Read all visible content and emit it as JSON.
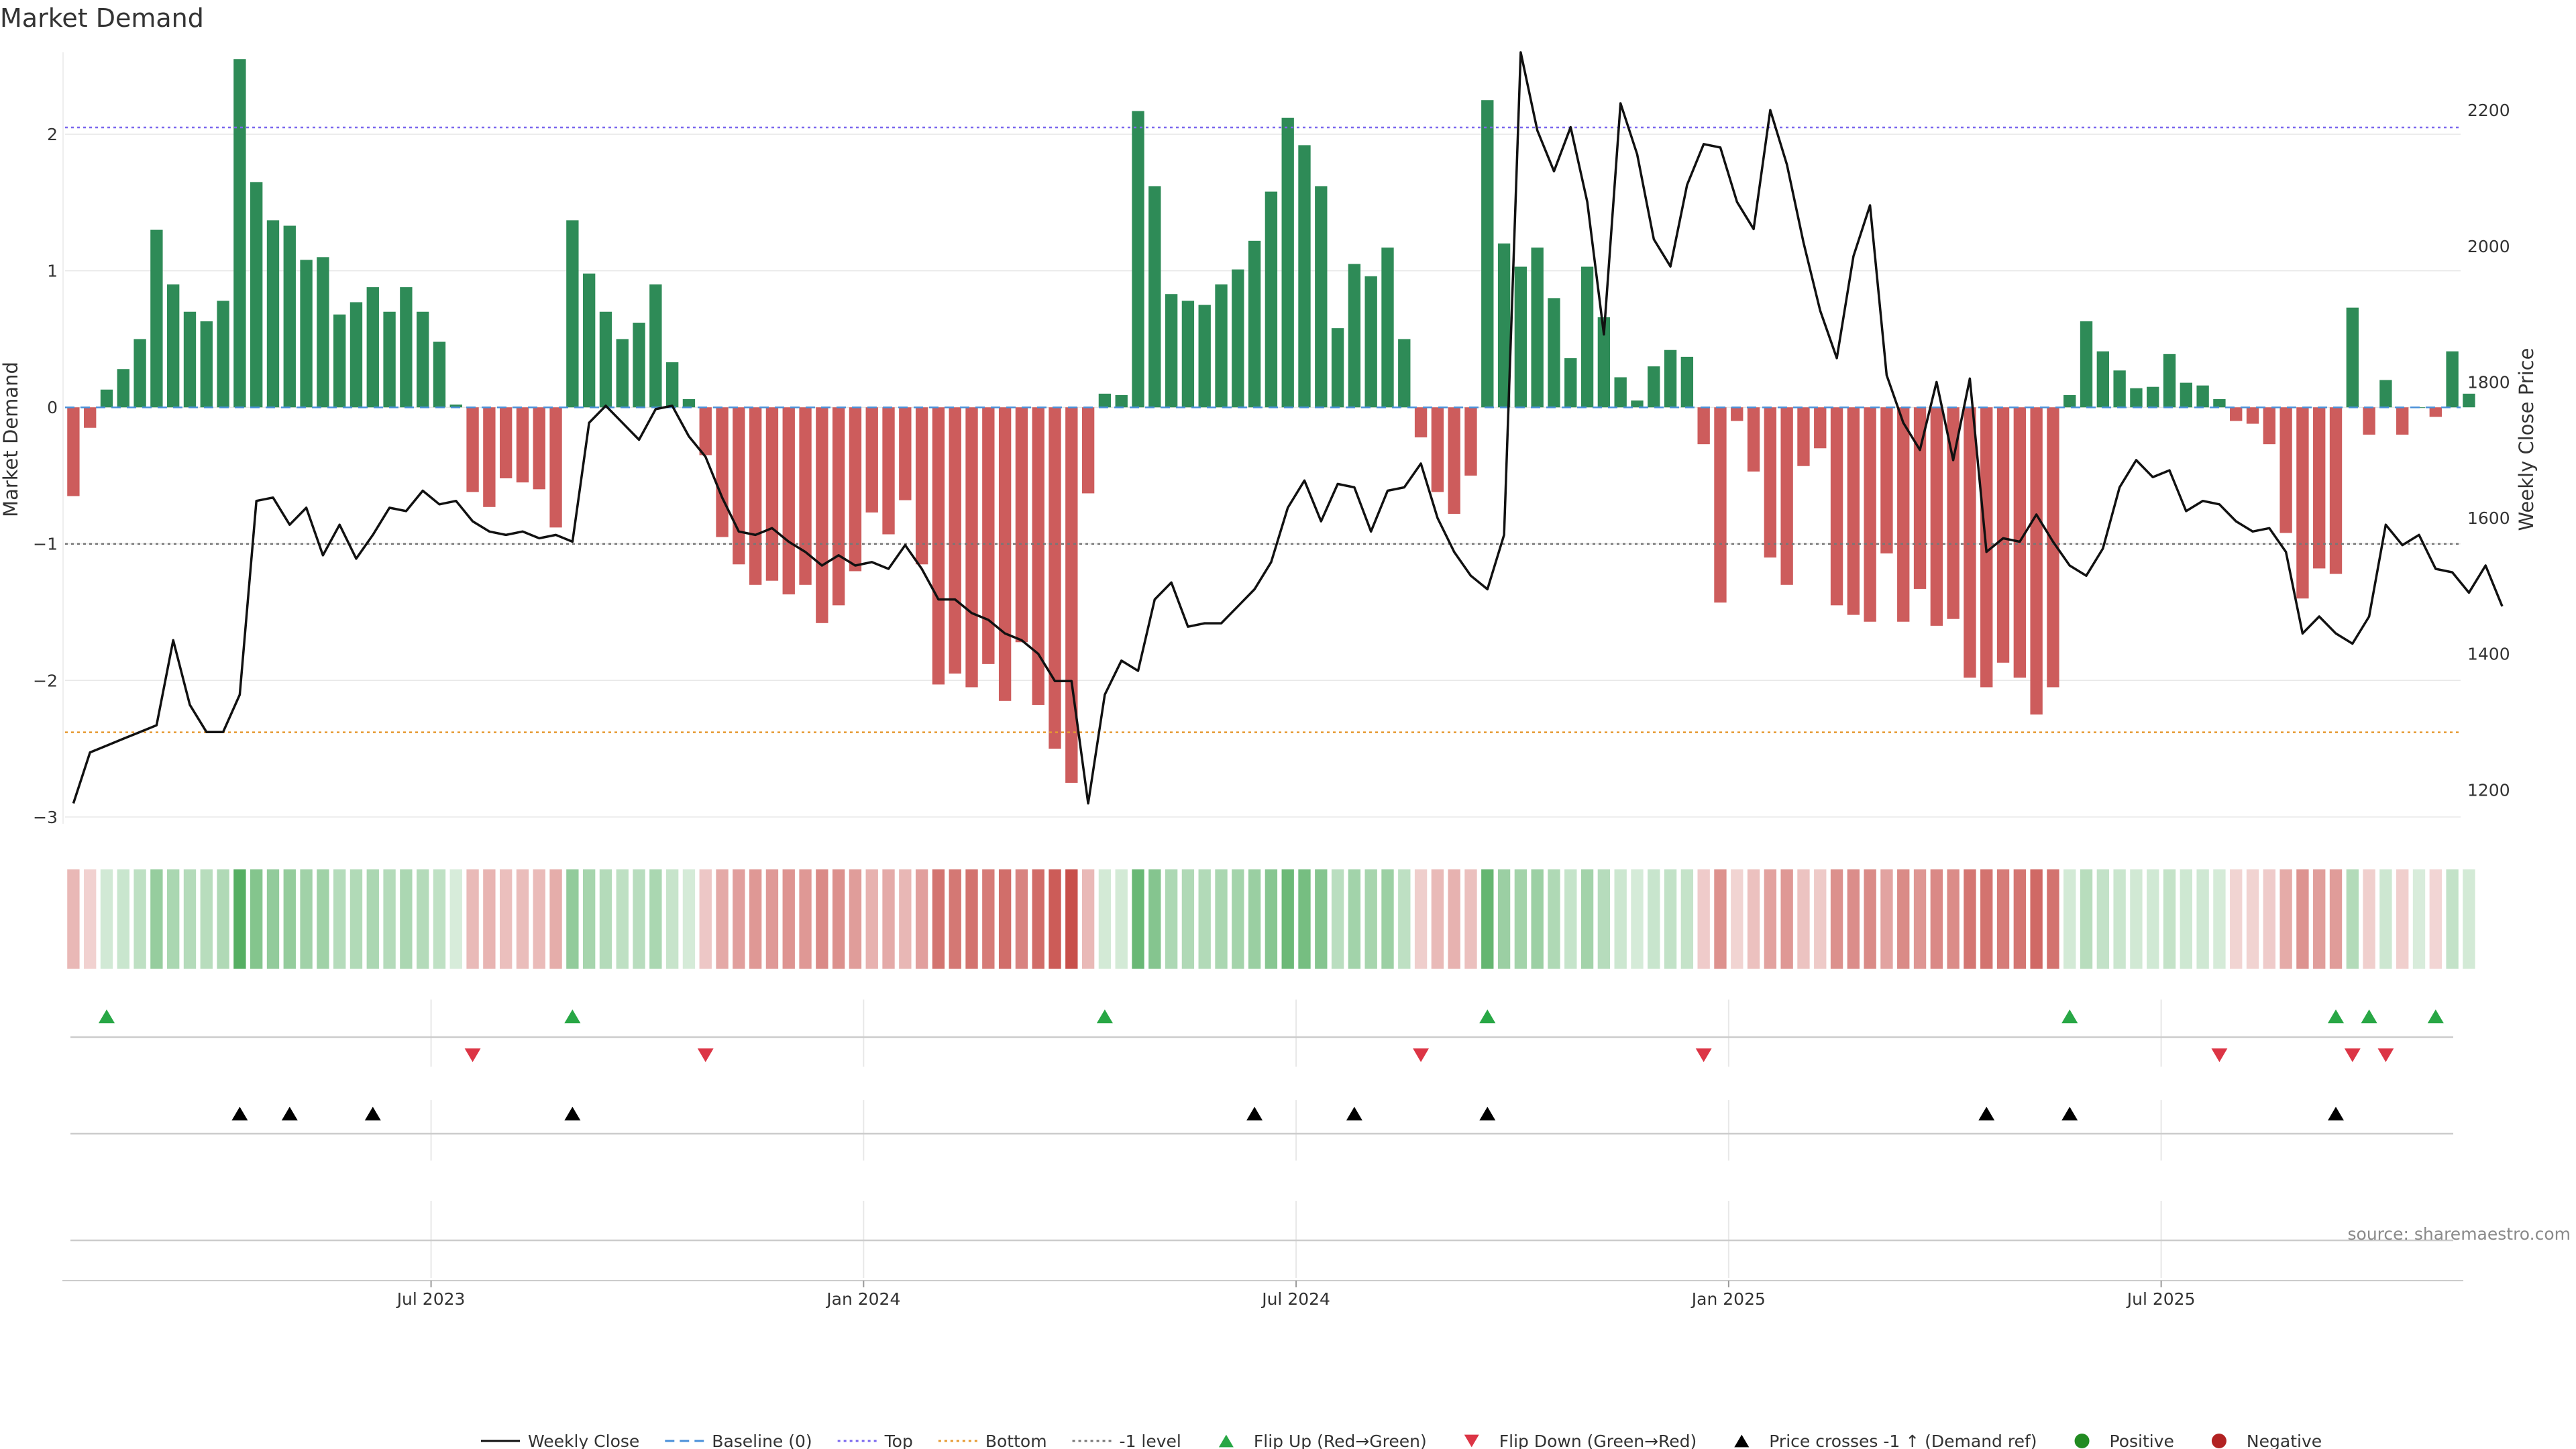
{
  "chart_data": {
    "type": "bar",
    "title": "Market Demand",
    "ylabel": "Market Demand",
    "y2label": "Weekly Close Price",
    "source": "source: sharemaestro.com",
    "ylim": [
      -3.05,
      2.6
    ],
    "y2lim": [
      1150,
      2285
    ],
    "yticks": [
      {
        "v": 2,
        "label": "2"
      },
      {
        "v": 1,
        "label": "1"
      },
      {
        "v": 0,
        "label": "0"
      },
      {
        "v": -1,
        "label": "−1"
      },
      {
        "v": -2,
        "label": "−2"
      },
      {
        "v": -3,
        "label": "−3"
      }
    ],
    "y2ticks": [
      {
        "v": 2200,
        "label": "2200"
      },
      {
        "v": 2000,
        "label": "2000"
      },
      {
        "v": 1800,
        "label": "1800"
      },
      {
        "v": 1600,
        "label": "1600"
      },
      {
        "v": 1400,
        "label": "1400"
      },
      {
        "v": 1200,
        "label": "1200"
      }
    ],
    "xticks": [
      {
        "i": 22,
        "label": "Jul 2023"
      },
      {
        "i": 48,
        "label": "Jan 2024"
      },
      {
        "i": 74,
        "label": "Jul 2024"
      },
      {
        "i": 100,
        "label": "Jan 2025"
      },
      {
        "i": 126,
        "label": "Jul 2025"
      }
    ],
    "n_weeks": 144,
    "top_level": 2.05,
    "bottom_level": -2.38,
    "minus1_level": -1,
    "demand": [
      -0.65,
      -0.15,
      0.13,
      0.28,
      0.5,
      1.3,
      0.9,
      0.7,
      0.63,
      0.78,
      2.55,
      1.65,
      1.37,
      1.33,
      1.08,
      1.1,
      0.68,
      0.77,
      0.88,
      0.7,
      0.88,
      0.7,
      0.48,
      0.02,
      -0.62,
      -0.73,
      -0.52,
      -0.55,
      -0.6,
      -0.88,
      1.37,
      0.98,
      0.7,
      0.5,
      0.62,
      0.9,
      0.33,
      0.06,
      -0.35,
      -0.95,
      -1.15,
      -1.3,
      -1.27,
      -1.37,
      -1.3,
      -1.58,
      -1.45,
      -1.2,
      -0.77,
      -0.93,
      -0.68,
      -1.15,
      -2.03,
      -1.95,
      -2.05,
      -1.88,
      -2.15,
      -1.72,
      -2.18,
      -2.5,
      -2.75,
      -0.63,
      0.1,
      0.09,
      2.17,
      1.62,
      0.83,
      0.78,
      0.75,
      0.9,
      1.01,
      1.22,
      1.58,
      2.12,
      1.92,
      1.62,
      0.58,
      1.05,
      0.96,
      1.17,
      0.5,
      -0.22,
      -0.62,
      -0.78,
      -0.5,
      2.25,
      1.2,
      1.03,
      1.17,
      0.8,
      0.36,
      1.03,
      0.66,
      0.22,
      0.05,
      0.3,
      0.42,
      0.37,
      -0.27,
      -1.43,
      -0.1,
      -0.47,
      -1.1,
      -1.3,
      -0.43,
      -0.3,
      -1.45,
      -1.52,
      -1.57,
      -1.07,
      -1.57,
      -1.33,
      -1.6,
      -1.55,
      -1.98,
      -2.05,
      -1.87,
      -1.98,
      -2.25,
      -2.05,
      0.09,
      0.63,
      0.41,
      0.27,
      0.14,
      0.15,
      0.39,
      0.18,
      0.16,
      0.06,
      -0.1,
      -0.12,
      -0.27,
      -0.92,
      -1.4,
      -1.18,
      -1.22,
      0.73,
      -0.2,
      0.2,
      -0.2,
      0.0,
      -0.07,
      0.41,
      0.1
    ],
    "price": [
      1180,
      1255,
      1265,
      1275,
      1285,
      1295,
      1420,
      1325,
      1285,
      1285,
      1340,
      1625,
      1630,
      1590,
      1615,
      1545,
      1590,
      1540,
      1575,
      1615,
      1610,
      1640,
      1620,
      1625,
      1595,
      1580,
      1575,
      1580,
      1570,
      1575,
      1565,
      1740,
      1765,
      1740,
      1715,
      1760,
      1765,
      1720,
      1690,
      1630,
      1580,
      1575,
      1585,
      1565,
      1550,
      1530,
      1545,
      1530,
      1535,
      1525,
      1560,
      1525,
      1480,
      1480,
      1460,
      1450,
      1430,
      1420,
      1400,
      1360,
      1360,
      1180,
      1340,
      1390,
      1375,
      1480,
      1505,
      1440,
      1445,
      1445,
      1470,
      1495,
      1535,
      1615,
      1655,
      1595,
      1650,
      1645,
      1580,
      1640,
      1645,
      1680,
      1600,
      1550,
      1515,
      1495,
      1575,
      2285,
      2170,
      2110,
      2175,
      2065,
      1870,
      2210,
      2135,
      2010,
      1970,
      2090,
      2150,
      2145,
      2065,
      2025,
      2200,
      2120,
      2005,
      1905,
      1835,
      1985,
      2060,
      1810,
      1740,
      1700,
      1800,
      1685,
      1805,
      1550,
      1570,
      1565,
      1605,
      1565,
      1530,
      1515,
      1555,
      1645,
      1685,
      1660,
      1670,
      1610,
      1625,
      1620,
      1595,
      1580,
      1585,
      1550,
      1430,
      1455,
      1430,
      1415,
      1455,
      1590,
      1560,
      1575,
      1525,
      1520,
      1490,
      1530,
      1470
    ],
    "flip_up": [
      2,
      30,
      62,
      85,
      120,
      136,
      138,
      142
    ],
    "flip_down": [
      24,
      38,
      81,
      98,
      129,
      137,
      139
    ],
    "price_cross": [
      10,
      13,
      18,
      30,
      71,
      77,
      85,
      115,
      120,
      136
    ],
    "colors": {
      "pos": "#2e8b57",
      "neg": "#cd5c5c",
      "price": "#111111",
      "top": "#7b68ee",
      "bottom": "#e69930",
      "minus1": "#777777",
      "baseline": "#4a90d9",
      "flip_up": "#28a745",
      "flip_down": "#dc3545",
      "cross": "#000000",
      "grid": "#e8e8e8"
    },
    "legend": [
      {
        "type": "line",
        "label": "Weekly Close",
        "color": "#111111"
      },
      {
        "type": "dash",
        "label": "Baseline (0)",
        "color": "#4a90d9"
      },
      {
        "type": "dotted",
        "label": "Top",
        "color": "#7b68ee"
      },
      {
        "type": "dotted",
        "label": "Bottom",
        "color": "#e69930"
      },
      {
        "type": "dotted",
        "label": "-1 level",
        "color": "#777777"
      },
      {
        "type": "tri-up",
        "label": "Flip Up (Red→Green)",
        "color": "#28a745"
      },
      {
        "type": "tri-down",
        "label": "Flip Down (Green→Red)",
        "color": "#dc3545"
      },
      {
        "type": "tri-up",
        "label": "Price crosses -1 ↑ (Demand ref)",
        "color": "#000000"
      },
      {
        "type": "dot",
        "label": "Positive",
        "color": "#228b22"
      },
      {
        "type": "dot",
        "label": "Negative",
        "color": "#b22222"
      }
    ]
  }
}
